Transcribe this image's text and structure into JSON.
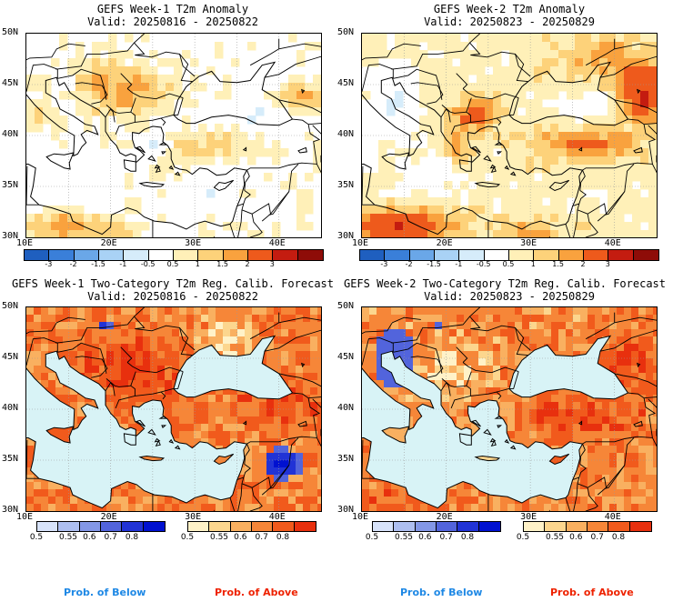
{
  "panels": [
    {
      "title": "GEFS Week-1 T2m Anomaly",
      "valid": "Valid: 20250816 - 20250822"
    },
    {
      "title": "GEFS Week-2 T2m Anomaly",
      "valid": "Valid: 20250823 - 20250829"
    },
    {
      "title": "GEFS Week-1 Two-Category T2m Reg. Calib. Forecast",
      "valid": "Valid: 20250816 - 20250822"
    },
    {
      "title": "GEFS Week-2 Two-Category T2m Reg. Calib. Forecast",
      "valid": "Valid: 20250823 - 20250829"
    }
  ],
  "lat_labels": [
    "50N",
    "45N",
    "40N",
    "35N",
    "30N"
  ],
  "lon_labels": [
    "10E",
    "20E",
    "30E",
    "40E"
  ],
  "anomaly_colorbar": {
    "labels": [
      "-3",
      "-2",
      "-1.5",
      "-1",
      "-0.5",
      "0.5",
      "1",
      "1.5",
      "2",
      "3"
    ],
    "colors": [
      "#1f5fbf",
      "#3a7fd9",
      "#6aa7e8",
      "#a9d2f5",
      "#d6ecfa",
      "#ffffff",
      "#fff0b8",
      "#fdd27a",
      "#f9a23e",
      "#ee5a1c",
      "#c41c10",
      "#8e0c08"
    ]
  },
  "below_colorbar": {
    "labels": [
      "0.5",
      "0.55",
      "0.6",
      "0.7",
      "0.8"
    ],
    "colors": [
      "#d8e3fa",
      "#aebff0",
      "#8397e6",
      "#5264dc",
      "#2133d6",
      "#0011d0"
    ]
  },
  "above_colorbar": {
    "labels": [
      "0.5",
      "0.55",
      "0.6",
      "0.7",
      "0.8"
    ],
    "colors": [
      "#fff2c8",
      "#fcd68e",
      "#f9b060",
      "#f68638",
      "#f15a1c",
      "#e8300e"
    ]
  },
  "legend": {
    "below": "Prob. of Below",
    "above": "Prob. of Above"
  },
  "colors": {
    "below_text": "#1e88e5",
    "above_text": "#ee2200",
    "sea": "#d8f3f6"
  }
}
